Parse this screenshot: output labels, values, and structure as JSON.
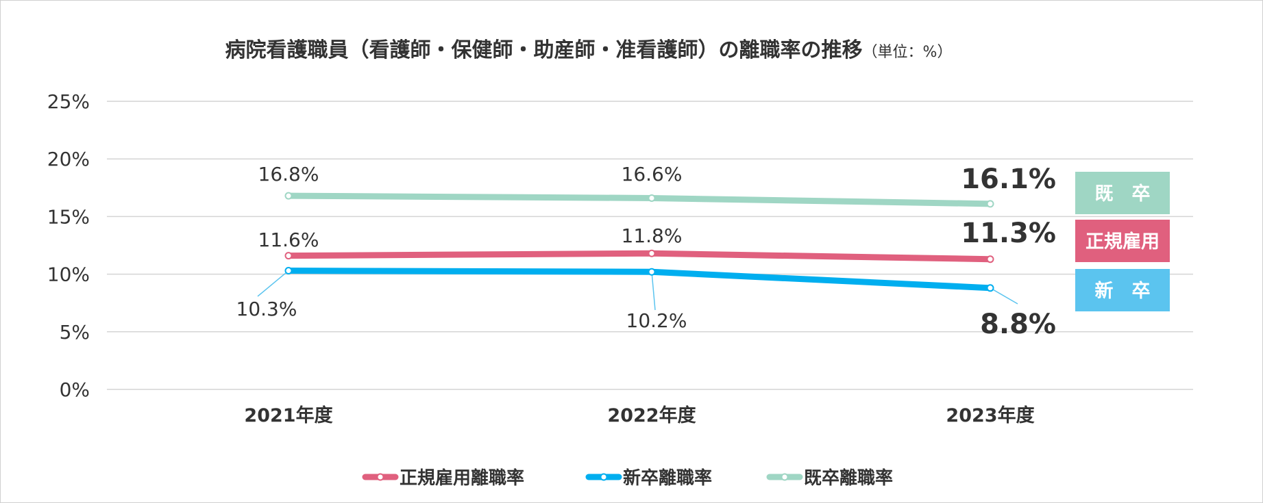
{
  "chart_data": {
    "type": "line",
    "title": "病院看護職員（看護師・保健師・助産師・准看護師）の離職率の推移",
    "title_unit": "（単位：%）",
    "categories": [
      "2021年度",
      "2022年度",
      "2023年度"
    ],
    "y_ticks": [
      "0%",
      "5%",
      "10%",
      "15%",
      "20%",
      "25%"
    ],
    "ylim": [
      0,
      25
    ],
    "grid": true,
    "legend_position": "bottom",
    "series": [
      {
        "name": "正規雇用離職率",
        "tag": "正規雇用",
        "color": "#e0607e",
        "values": [
          11.6,
          11.8,
          11.3
        ],
        "labels": [
          "11.6%",
          "11.8%",
          "11.3%"
        ]
      },
      {
        "name": "新卒離職率",
        "tag": "新　卒",
        "color": "#00aeef",
        "color_light": "#5bc4ef",
        "values": [
          10.3,
          10.2,
          8.8
        ],
        "labels": [
          "10.3%",
          "10.2%",
          "8.8%"
        ]
      },
      {
        "name": "既卒離職率",
        "tag": "既　卒",
        "color": "#9fd6c4",
        "values": [
          16.8,
          16.6,
          16.1
        ],
        "labels": [
          "16.8%",
          "16.6%",
          "16.1%"
        ]
      }
    ]
  }
}
